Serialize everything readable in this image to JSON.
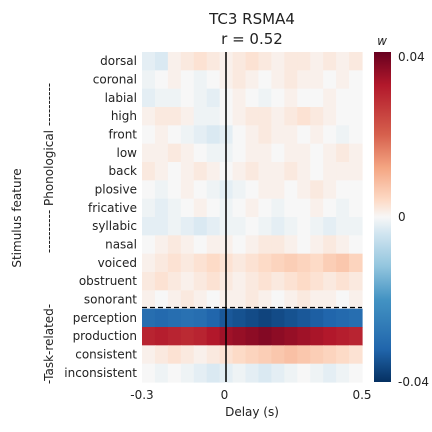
{
  "chart_data": {
    "type": "heatmap",
    "title": "TC3 RSMA4",
    "subtitle": "r = 0.52",
    "xlabel": "Delay (s)",
    "ylabel": "Stimulus feature",
    "x_ticks": [
      "-0.3",
      "0",
      "0.5"
    ],
    "xlim": [
      -0.3,
      0.5
    ],
    "x_delays": [
      -0.3,
      -0.25,
      -0.2,
      -0.15,
      -0.1,
      -0.05,
      0.0,
      0.05,
      0.1,
      0.15,
      0.2,
      0.25,
      0.3,
      0.35,
      0.4,
      0.45,
      0.5
    ],
    "rows": [
      "dorsal",
      "coronal",
      "labial",
      "high",
      "front",
      "low",
      "back",
      "plosive",
      "fricative",
      "syllabic",
      "nasal",
      "voiced",
      "obstruent",
      "sonorant",
      "perception",
      "production",
      "consistent",
      "inconsistent"
    ],
    "groups": [
      {
        "label": "---------- Phonological ----------",
        "rows": [
          0,
          13
        ]
      },
      {
        "label": "-Task-related-",
        "rows": [
          14,
          17
        ]
      }
    ],
    "colorbar": {
      "label": "w",
      "max_label": "0.04",
      "mid_label": "0",
      "min_label": "-0.04",
      "vmin": -0.04,
      "vmax": 0.04
    },
    "values": [
      [
        -0.002,
        -0.003,
        0.001,
        0.002,
        0.003,
        0.002,
        0.001,
        0.002,
        0.003,
        0.002,
        0.001,
        0.002,
        0.002,
        0.001,
        0.002,
        0.001,
        0.002
      ],
      [
        -0.001,
        0.0,
        0.001,
        0.0,
        -0.001,
        0.0,
        0.001,
        0.002,
        0.001,
        0.0,
        0.001,
        0.002,
        0.001,
        0.001,
        0.0,
        0.001,
        0.0
      ],
      [
        -0.002,
        -0.001,
        -0.001,
        0.0,
        -0.001,
        -0.002,
        0.0,
        0.001,
        0.0,
        -0.001,
        0.0,
        0.001,
        0.0,
        0.0,
        0.001,
        0.0,
        0.0
      ],
      [
        0.001,
        0.002,
        0.002,
        0.001,
        -0.001,
        -0.001,
        0.0,
        0.001,
        0.002,
        0.002,
        0.001,
        0.002,
        0.003,
        0.002,
        0.001,
        0.0,
        0.0
      ],
      [
        0.0,
        0.001,
        0.0,
        -0.001,
        -0.002,
        -0.003,
        -0.002,
        0.0,
        0.001,
        0.002,
        0.001,
        0.001,
        0.0,
        0.001,
        0.0,
        -0.001,
        0.0
      ],
      [
        0.001,
        0.001,
        0.002,
        0.001,
        0.0,
        -0.001,
        -0.001,
        0.0,
        0.001,
        0.001,
        0.0,
        0.001,
        0.001,
        0.0,
        0.001,
        0.002,
        0.001
      ],
      [
        0.002,
        0.001,
        0.0,
        0.001,
        0.002,
        0.001,
        0.0,
        0.001,
        0.002,
        0.001,
        0.001,
        0.002,
        0.001,
        0.0,
        0.001,
        0.001,
        0.001
      ],
      [
        0.0,
        -0.001,
        0.0,
        0.001,
        0.0,
        -0.001,
        -0.002,
        -0.001,
        0.0,
        0.001,
        0.001,
        0.0,
        0.001,
        0.002,
        0.001,
        0.0,
        0.0
      ],
      [
        -0.001,
        -0.002,
        -0.001,
        0.0,
        0.001,
        0.0,
        -0.001,
        0.0,
        0.001,
        0.0,
        -0.001,
        0.0,
        0.0,
        0.001,
        0.0,
        -0.001,
        0.0
      ],
      [
        -0.002,
        -0.002,
        -0.001,
        -0.002,
        -0.003,
        -0.002,
        -0.001,
        -0.001,
        0.0,
        -0.001,
        -0.002,
        -0.001,
        0.0,
        -0.001,
        -0.002,
        -0.001,
        -0.001
      ],
      [
        0.0,
        0.001,
        0.002,
        0.001,
        0.0,
        0.001,
        0.001,
        0.0,
        0.001,
        0.002,
        0.002,
        0.001,
        0.0,
        0.001,
        0.002,
        0.001,
        0.0
      ],
      [
        0.001,
        0.002,
        0.003,
        0.002,
        0.003,
        0.004,
        0.003,
        0.002,
        0.003,
        0.004,
        0.005,
        0.006,
        0.005,
        0.004,
        0.006,
        0.007,
        0.005
      ],
      [
        0.002,
        0.003,
        0.002,
        0.001,
        0.002,
        0.003,
        0.002,
        0.001,
        0.002,
        0.003,
        0.002,
        0.003,
        0.004,
        0.003,
        0.002,
        0.003,
        0.002
      ],
      [
        0.001,
        0.0,
        0.001,
        0.002,
        0.001,
        0.0,
        0.001,
        0.001,
        0.002,
        0.001,
        0.0,
        0.001,
        0.002,
        0.001,
        0.001,
        0.0,
        0.001
      ],
      [
        -0.03,
        -0.031,
        -0.03,
        -0.029,
        -0.03,
        -0.032,
        -0.034,
        -0.035,
        -0.036,
        -0.037,
        -0.036,
        -0.035,
        -0.034,
        -0.033,
        -0.032,
        -0.031,
        -0.03
      ],
      [
        0.03,
        0.031,
        0.03,
        0.029,
        0.03,
        0.032,
        0.034,
        0.035,
        0.036,
        0.037,
        0.036,
        0.035,
        0.034,
        0.033,
        0.032,
        0.031,
        0.03
      ],
      [
        0.001,
        0.002,
        0.003,
        0.002,
        0.001,
        0.002,
        0.003,
        0.004,
        0.005,
        0.006,
        0.007,
        0.008,
        0.007,
        0.006,
        0.005,
        0.004,
        0.003
      ],
      [
        0.0,
        -0.001,
        0.0,
        -0.001,
        -0.002,
        -0.003,
        -0.002,
        -0.001,
        -0.002,
        -0.003,
        -0.002,
        -0.001,
        0.0,
        -0.001,
        -0.002,
        -0.001,
        0.0
      ]
    ]
  }
}
